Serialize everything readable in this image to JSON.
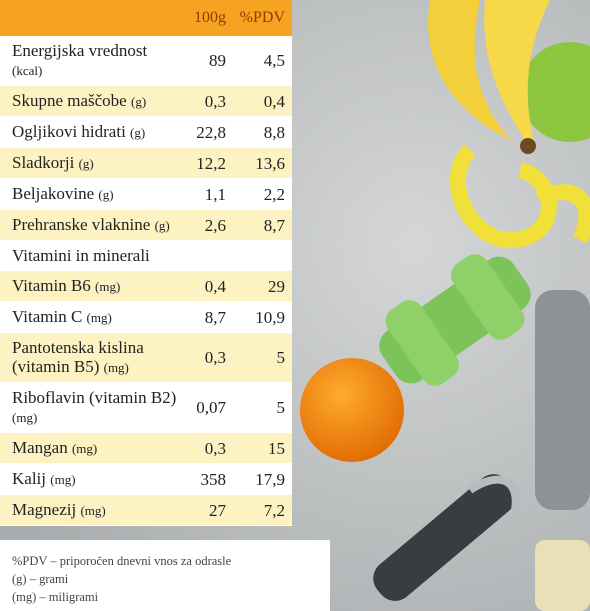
{
  "table": {
    "header": [
      "100g",
      "%PDV"
    ],
    "rows": [
      {
        "label": "Energijska vrednost",
        "unit": "(kcal)",
        "per100g": "89",
        "pdv": "4,5"
      },
      {
        "label": "Skupne maščobe",
        "unit": "(g)",
        "per100g": "0,3",
        "pdv": "0,4"
      },
      {
        "label": "Ogljikovi hidrati",
        "unit": "(g)",
        "per100g": "22,8",
        "pdv": "8,8"
      },
      {
        "label": "Sladkorji",
        "unit": "(g)",
        "per100g": "12,2",
        "pdv": "13,6"
      },
      {
        "label": "Beljakovine",
        "unit": "(g)",
        "per100g": "1,1",
        "pdv": "2,2"
      },
      {
        "label": "Prehranske vlaknine",
        "unit": "(g)",
        "per100g": "2,6",
        "pdv": "8,7"
      },
      {
        "label": "Vitamini in minerali"
      },
      {
        "label": "Vitamin B6",
        "unit": "(mg)",
        "per100g": "0,4",
        "pdv": "29"
      },
      {
        "label": "Vitamin C",
        "unit": "(mg)",
        "per100g": "8,7",
        "pdv": "10,9"
      },
      {
        "label": "Pantotenska kislina (vitamin B5)",
        "unit": "(mg)",
        "per100g": "0,3",
        "pdv": "5"
      },
      {
        "label": "Riboflavin (vitamin B2)",
        "unit": "(mg)",
        "per100g": "0,07",
        "pdv": "5"
      },
      {
        "label": "Mangan",
        "unit": "(mg)",
        "per100g": "0,3",
        "pdv": "15"
      },
      {
        "label": "Kalij",
        "unit": "(mg)",
        "per100g": "358",
        "pdv": "17,9"
      },
      {
        "label": "Magnezij",
        "unit": "(mg)",
        "per100g": "27",
        "pdv": "7,2"
      }
    ]
  },
  "footer": {
    "notes": [
      "%PDV – priporočen dnevni vnos za odrasle",
      "(g) – grami",
      "(mg) – miligrami"
    ]
  }
}
